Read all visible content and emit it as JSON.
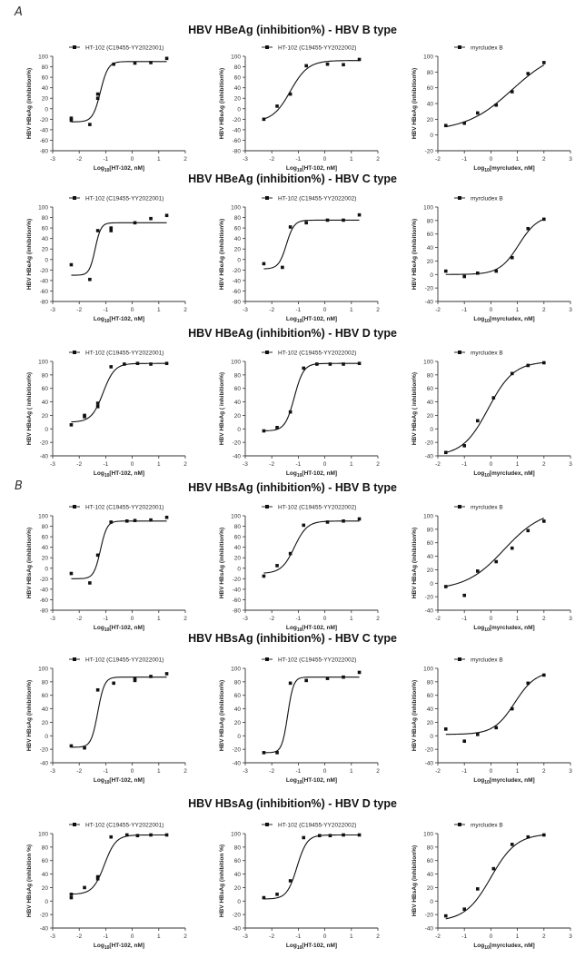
{
  "panel_labels": {
    "a": "A",
    "b": "B"
  },
  "section_titles": [
    "HBV HBeAg (inhibition%) - HBV B type",
    "HBV HBeAg (inhibition%)  - HBV C type",
    "HBV HBeAg (inhibition%)  - HBV D type",
    "HBV HBsAg (inhibition%) - HBV B type",
    "HBV HBsAg (inhibition%) - HBV C type",
    "HBV HBsAg (inhibition%)  - HBV D type"
  ],
  "chart_data": [
    {
      "type": "line",
      "legend": "HT-102 (C19455-YY2022001)",
      "ylabel": "HBV HBeAg (inhibition%)",
      "xlabel": "Log10[HT-102, nM]",
      "xlim": [
        -3,
        2
      ],
      "ylim": [
        -80,
        100
      ],
      "points": [
        [
          -2.3,
          -18
        ],
        [
          -2.3,
          -22
        ],
        [
          -1.6,
          -30
        ],
        [
          -1.3,
          20
        ],
        [
          -1.3,
          28
        ],
        [
          -0.7,
          85
        ],
        [
          0.1,
          87
        ],
        [
          0.7,
          88
        ],
        [
          1.3,
          96
        ]
      ],
      "fit": {
        "bottom": -25,
        "top": 90,
        "logic50": -1.2,
        "hill": 3
      }
    },
    {
      "type": "line",
      "legend": "HT-102 (C19455-YY2022002)",
      "ylabel": "HBV HBeAg (inhibition%)",
      "xlabel": "Log10[HT-102, nM]",
      "xlim": [
        -3,
        2
      ],
      "ylim": [
        -80,
        100
      ],
      "points": [
        [
          -2.3,
          -20
        ],
        [
          -1.8,
          5
        ],
        [
          -1.3,
          28
        ],
        [
          -0.7,
          82
        ],
        [
          0.1,
          85
        ],
        [
          0.7,
          84
        ],
        [
          1.3,
          94
        ]
      ],
      "fit": {
        "bottom": -25,
        "top": 92,
        "logic50": -1.3,
        "hill": 1.3
      }
    },
    {
      "type": "line",
      "legend": "myrcludex B",
      "ylabel": "HBV HBeAg (inhibition%)",
      "xlabel": "Log10[myrcludex, nM]",
      "xlim": [
        -2,
        3
      ],
      "ylim": [
        -20,
        100
      ],
      "points": [
        [
          -1.7,
          12
        ],
        [
          -1.0,
          15
        ],
        [
          -0.5,
          28
        ],
        [
          0.2,
          38
        ],
        [
          0.8,
          55
        ],
        [
          1.4,
          78
        ],
        [
          2.0,
          92
        ]
      ],
      "fit": {
        "bottom": 5,
        "top": 110,
        "logic50": 0.8,
        "hill": 0.5
      }
    },
    {
      "type": "line",
      "legend": "HT-102 (C19455-YY2022001)",
      "ylabel": "HBV HBeAg (inhibition%)",
      "xlabel": "Log10[HT-102, nM]",
      "xlim": [
        -3,
        2
      ],
      "ylim": [
        -80,
        100
      ],
      "points": [
        [
          -2.3,
          -10
        ],
        [
          -1.6,
          -38
        ],
        [
          -1.3,
          55
        ],
        [
          -0.8,
          60
        ],
        [
          -0.8,
          55
        ],
        [
          0.1,
          70
        ],
        [
          0.7,
          78
        ],
        [
          1.3,
          84
        ]
      ],
      "fit": {
        "bottom": -30,
        "top": 70,
        "logic50": -1.4,
        "hill": 4
      }
    },
    {
      "type": "line",
      "legend": "HT-102 (C19455-YY2022002)",
      "ylabel": "HBV HBeAg (inhibition%)",
      "xlabel": "Log10[HT-102, nM]",
      "xlim": [
        -3,
        2
      ],
      "ylim": [
        -80,
        100
      ],
      "points": [
        [
          -2.3,
          -8
        ],
        [
          -1.6,
          -15
        ],
        [
          -1.3,
          62
        ],
        [
          -0.7,
          70
        ],
        [
          0.1,
          75
        ],
        [
          0.7,
          75
        ],
        [
          1.3,
          85
        ]
      ],
      "fit": {
        "bottom": -18,
        "top": 75,
        "logic50": -1.45,
        "hill": 3
      }
    },
    {
      "type": "line",
      "legend": "myrcludex B",
      "ylabel": "HBV HBeAg (inhibition%)",
      "xlabel": "Log10[myrcludex, nM]",
      "xlim": [
        -2,
        3
      ],
      "ylim": [
        -40,
        100
      ],
      "points": [
        [
          -1.7,
          5
        ],
        [
          -1.0,
          -3
        ],
        [
          -0.5,
          2
        ],
        [
          0.2,
          5
        ],
        [
          0.8,
          25
        ],
        [
          1.4,
          68
        ],
        [
          2.0,
          82
        ]
      ],
      "fit": {
        "bottom": 0,
        "top": 88,
        "logic50": 1.05,
        "hill": 1.2
      }
    },
    {
      "type": "line",
      "legend": "HT-102 (C19455-YY2022001)",
      "ylabel": "HBV HBeAg ( inhibition%)",
      "xlabel": "Log10[HT-102, nM]",
      "xlim": [
        -3,
        2
      ],
      "ylim": [
        -40,
        100
      ],
      "points": [
        [
          -2.3,
          6
        ],
        [
          -1.8,
          18
        ],
        [
          -1.8,
          20
        ],
        [
          -1.3,
          33
        ],
        [
          -1.3,
          38
        ],
        [
          -0.8,
          92
        ],
        [
          -0.3,
          96
        ],
        [
          0.2,
          97
        ],
        [
          0.7,
          96
        ],
        [
          1.3,
          97
        ]
      ],
      "fit": {
        "bottom": 10,
        "top": 97,
        "logic50": -1.1,
        "hill": 2
      }
    },
    {
      "type": "line",
      "legend": "HT-102 (C19455-YY2022002)",
      "ylabel": "HBV HBeAg ( inhibition%)",
      "xlabel": "Log10[HT-102, nM]",
      "xlim": [
        -3,
        2
      ],
      "ylim": [
        -40,
        100
      ],
      "points": [
        [
          -2.3,
          -3
        ],
        [
          -1.8,
          2
        ],
        [
          -1.3,
          25
        ],
        [
          -0.8,
          90
        ],
        [
          -0.3,
          96
        ],
        [
          0.2,
          96
        ],
        [
          0.7,
          96
        ],
        [
          1.3,
          97
        ]
      ],
      "fit": {
        "bottom": -3,
        "top": 97,
        "logic50": -1.15,
        "hill": 2.5
      }
    },
    {
      "type": "line",
      "legend": "myrcludex B",
      "ylabel": "HBV HBeAg ( inhibition%)",
      "xlabel": "Log10[myrcludex, nM]",
      "xlim": [
        -2,
        3
      ],
      "ylim": [
        -40,
        100
      ],
      "points": [
        [
          -1.7,
          -35
        ],
        [
          -1.0,
          -25
        ],
        [
          -0.5,
          12
        ],
        [
          0.1,
          46
        ],
        [
          0.8,
          82
        ],
        [
          1.4,
          94
        ],
        [
          2.0,
          98
        ]
      ],
      "fit": {
        "bottom": -40,
        "top": 100,
        "logic50": -0.1,
        "hill": 0.9
      }
    },
    {
      "type": "line",
      "legend": "HT-102 (C19455-YY2022001)",
      "ylabel": "HBV HBsAg (inhibition%)",
      "xlabel": "Log10[HT-102, nM]",
      "xlim": [
        -3,
        2
      ],
      "ylim": [
        -80,
        100
      ],
      "points": [
        [
          -2.3,
          -10
        ],
        [
          -1.6,
          -28
        ],
        [
          -1.3,
          25
        ],
        [
          -0.8,
          88
        ],
        [
          -0.2,
          90
        ],
        [
          0.1,
          91
        ],
        [
          0.7,
          92
        ],
        [
          1.3,
          97
        ]
      ],
      "fit": {
        "bottom": -20,
        "top": 90,
        "logic50": -1.2,
        "hill": 3.5
      }
    },
    {
      "type": "line",
      "legend": "HT-102 (C19455-YY2022002)",
      "ylabel": "HBV HBsAg (inhibition%)",
      "xlabel": "Log10[HT-102, nM]",
      "xlim": [
        -3,
        2
      ],
      "ylim": [
        -80,
        100
      ],
      "points": [
        [
          -2.3,
          -15
        ],
        [
          -1.8,
          5
        ],
        [
          -1.3,
          28
        ],
        [
          -0.8,
          82
        ],
        [
          0.1,
          88
        ],
        [
          0.7,
          90
        ],
        [
          1.3,
          94
        ]
      ],
      "fit": {
        "bottom": -10,
        "top": 90,
        "logic50": -1.15,
        "hill": 1.8
      }
    },
    {
      "type": "line",
      "legend": "myrcludex B",
      "ylabel": "HBV HBsAg (inhibition%)",
      "xlabel": "Log10[myrcludex, nM]",
      "xlim": [
        -2,
        3
      ],
      "ylim": [
        -40,
        100
      ],
      "points": [
        [
          -1.7,
          -5
        ],
        [
          -1.0,
          -18
        ],
        [
          -0.5,
          18
        ],
        [
          0.2,
          32
        ],
        [
          0.8,
          52
        ],
        [
          1.4,
          78
        ],
        [
          2.0,
          92
        ]
      ],
      "fit": {
        "bottom": -10,
        "top": 110,
        "logic50": 0.5,
        "hill": 0.6
      }
    },
    {
      "type": "line",
      "legend": "HT-102 (C19455-YY2022001)",
      "ylabel": "HBV HBsAg (inhibition%)",
      "xlabel": "Log10[HT-102, nM]",
      "xlim": [
        -3,
        2
      ],
      "ylim": [
        -40,
        100
      ],
      "points": [
        [
          -2.3,
          -15
        ],
        [
          -1.8,
          -18
        ],
        [
          -1.3,
          68
        ],
        [
          -0.7,
          78
        ],
        [
          0.1,
          82
        ],
        [
          0.1,
          85
        ],
        [
          0.7,
          88
        ],
        [
          1.3,
          92
        ]
      ],
      "fit": {
        "bottom": -17,
        "top": 87,
        "logic50": -1.3,
        "hill": 3.5
      }
    },
    {
      "type": "line",
      "legend": "HT-102 (C19455-YY2022002)",
      "ylabel": "HBV HBsAg (inhibition%)",
      "xlabel": "Log10[HT-102, nM]",
      "xlim": [
        -3,
        2
      ],
      "ylim": [
        -40,
        100
      ],
      "points": [
        [
          -2.3,
          -25
        ],
        [
          -1.8,
          -25
        ],
        [
          -1.3,
          78
        ],
        [
          -0.7,
          82
        ],
        [
          0.1,
          85
        ],
        [
          0.7,
          87
        ],
        [
          1.3,
          94
        ]
      ],
      "fit": {
        "bottom": -25,
        "top": 87,
        "logic50": -1.4,
        "hill": 4
      }
    },
    {
      "type": "line",
      "legend": "myrcludex B",
      "ylabel": "HBV HBsAg (inhibition%)",
      "xlabel": "Log10[myrcludex, nM]",
      "xlim": [
        -2,
        3
      ],
      "ylim": [
        -40,
        100
      ],
      "points": [
        [
          -1.7,
          10
        ],
        [
          -1.0,
          -8
        ],
        [
          -0.5,
          2
        ],
        [
          0.2,
          12
        ],
        [
          0.8,
          40
        ],
        [
          1.4,
          78
        ],
        [
          2.0,
          90
        ]
      ],
      "fit": {
        "bottom": 2,
        "top": 96,
        "logic50": 0.9,
        "hill": 1.1
      }
    },
    {
      "type": "line",
      "legend": "HT-102 (C19455-YY2022001)",
      "ylabel": "HBV HBsAg (inhibition %)",
      "xlabel": "Log10[HT-102, nM]",
      "xlim": [
        -3,
        2
      ],
      "ylim": [
        -40,
        100
      ],
      "points": [
        [
          -2.3,
          5
        ],
        [
          -2.3,
          10
        ],
        [
          -1.8,
          20
        ],
        [
          -1.3,
          33
        ],
        [
          -1.3,
          36
        ],
        [
          -0.8,
          95
        ],
        [
          -0.2,
          98
        ],
        [
          0.2,
          97
        ],
        [
          0.7,
          98
        ],
        [
          1.3,
          98
        ]
      ],
      "fit": {
        "bottom": 10,
        "top": 98,
        "logic50": -1.05,
        "hill": 2
      }
    },
    {
      "type": "line",
      "legend": "HT-102 (C19455-YY2022002)",
      "ylabel": "HBV HBsAg (inhibition %)",
      "xlabel": "Log10[HT-102, nM]",
      "xlim": [
        -3,
        2
      ],
      "ylim": [
        -40,
        100
      ],
      "points": [
        [
          -2.3,
          5
        ],
        [
          -1.8,
          10
        ],
        [
          -1.3,
          30
        ],
        [
          -0.8,
          94
        ],
        [
          -0.2,
          97
        ],
        [
          0.2,
          97
        ],
        [
          0.7,
          98
        ],
        [
          1.3,
          98
        ]
      ],
      "fit": {
        "bottom": 3,
        "top": 98,
        "logic50": -1.05,
        "hill": 2.3
      }
    },
    {
      "type": "line",
      "legend": "myrcludex B",
      "ylabel": "HBV HBsAg (inhibition%)",
      "xlabel": "Log10[myrcludex, nM]",
      "xlim": [
        -2,
        3
      ],
      "ylim": [
        -40,
        100
      ],
      "points": [
        [
          -1.7,
          -22
        ],
        [
          -1.0,
          -12
        ],
        [
          -0.5,
          18
        ],
        [
          0.1,
          48
        ],
        [
          0.8,
          84
        ],
        [
          1.4,
          95
        ],
        [
          2.0,
          98
        ]
      ],
      "fit": {
        "bottom": -30,
        "top": 100,
        "logic50": 0.0,
        "hill": 0.9
      }
    }
  ]
}
